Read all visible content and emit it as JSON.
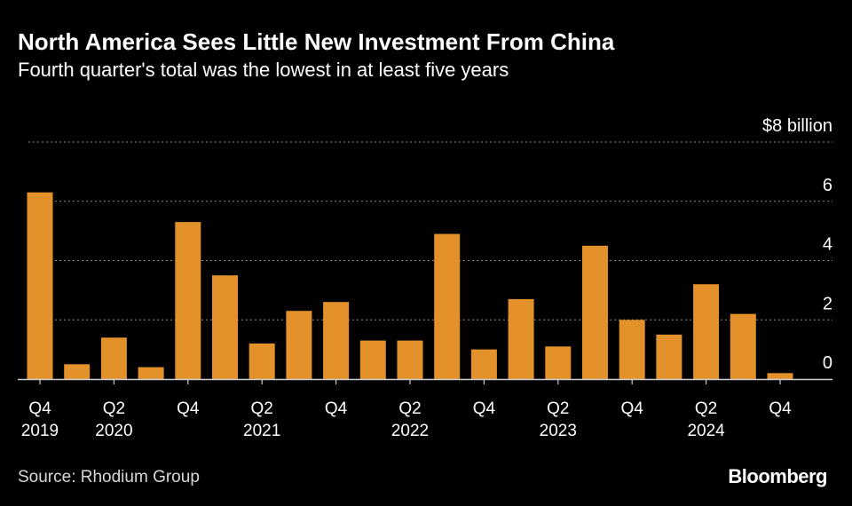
{
  "header": {
    "title": "North America Sees Little New Investment From China",
    "subtitle": "Fourth quarter's total was the lowest in at least five years"
  },
  "footer": {
    "source": "Source: Rhodium Group",
    "brand": "Bloomberg"
  },
  "colors": {
    "bar": "#E3912A",
    "gridline": "#8a8a8a",
    "axis": "#cfcfcf",
    "text": "#ffffff"
  },
  "chart_data": {
    "type": "bar",
    "categories": [
      "Q4 2019",
      "Q1 2020",
      "Q2 2020",
      "Q3 2020",
      "Q4 2020",
      "Q1 2021",
      "Q2 2021",
      "Q3 2021",
      "Q4 2021",
      "Q1 2022",
      "Q2 2022",
      "Q3 2022",
      "Q4 2022",
      "Q1 2023",
      "Q2 2023",
      "Q3 2023",
      "Q4 2023",
      "Q1 2024",
      "Q2 2024",
      "Q3 2024",
      "Q4 2024"
    ],
    "values": [
      6.3,
      0.5,
      1.4,
      0.4,
      5.3,
      3.5,
      1.2,
      2.3,
      2.6,
      1.3,
      1.3,
      4.9,
      1.0,
      2.7,
      1.1,
      4.5,
      2.0,
      1.5,
      3.2,
      2.2,
      0.2
    ],
    "x_tick_labels": [
      {
        "index": 0,
        "quarter": "Q4",
        "year": "2019"
      },
      {
        "index": 2,
        "quarter": "Q2",
        "year": "2020"
      },
      {
        "index": 4,
        "quarter": "Q4",
        "year": ""
      },
      {
        "index": 6,
        "quarter": "Q2",
        "year": "2021"
      },
      {
        "index": 8,
        "quarter": "Q4",
        "year": ""
      },
      {
        "index": 10,
        "quarter": "Q2",
        "year": "2022"
      },
      {
        "index": 12,
        "quarter": "Q4",
        "year": ""
      },
      {
        "index": 14,
        "quarter": "Q2",
        "year": "2023"
      },
      {
        "index": 16,
        "quarter": "Q4",
        "year": ""
      },
      {
        "index": 18,
        "quarter": "Q2",
        "year": "2024"
      },
      {
        "index": 20,
        "quarter": "Q4",
        "year": ""
      }
    ],
    "y_ticks": [
      {
        "value": 0,
        "label": "0"
      },
      {
        "value": 2,
        "label": "2"
      },
      {
        "value": 4,
        "label": "4"
      },
      {
        "value": 6,
        "label": "6"
      },
      {
        "value": 8,
        "label": "$8 billion"
      }
    ],
    "ylim": [
      0,
      8
    ],
    "grid": true,
    "xlabel": "",
    "ylabel": ""
  }
}
